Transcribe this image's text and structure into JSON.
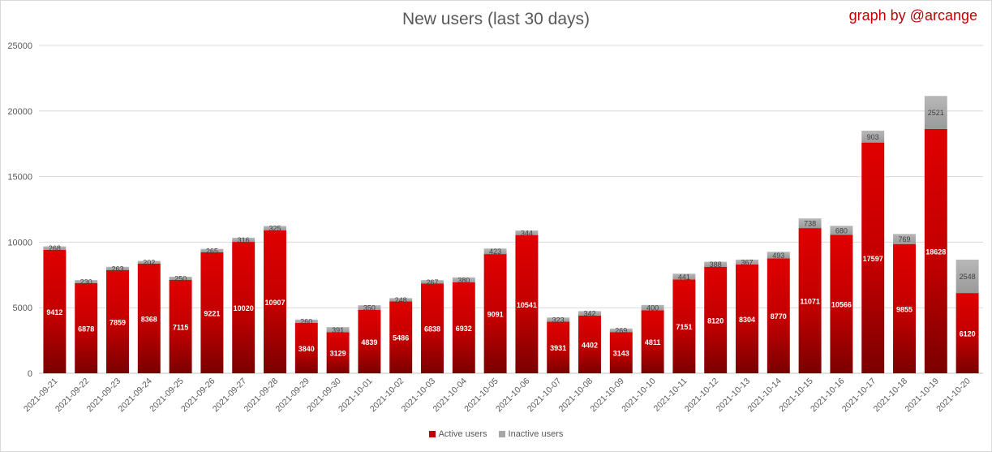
{
  "chart_data": {
    "type": "bar",
    "stacked": true,
    "title": "New users (last 30 days)",
    "credit": "graph by @arcange",
    "xlabel": "",
    "ylabel": "",
    "ylim": [
      0,
      25000
    ],
    "yticks": [
      0,
      5000,
      10000,
      15000,
      20000,
      25000
    ],
    "grid": true,
    "legend_position": "bottom",
    "categories": [
      "2021-09-21",
      "2021-09-22",
      "2021-09-23",
      "2021-09-24",
      "2021-09-25",
      "2021-09-26",
      "2021-09-27",
      "2021-09-28",
      "2021-09-29",
      "2021-09-30",
      "2021-10-01",
      "2021-10-02",
      "2021-10-03",
      "2021-10-04",
      "2021-10-05",
      "2021-10-06",
      "2021-10-07",
      "2021-10-08",
      "2021-10-09",
      "2021-10-10",
      "2021-10-11",
      "2021-10-12",
      "2021-10-13",
      "2021-10-14",
      "2021-10-15",
      "2021-10-16",
      "2021-10-17",
      "2021-10-18",
      "2021-10-19",
      "2021-10-20"
    ],
    "series": [
      {
        "name": "Active users",
        "color": "#c00000",
        "values": [
          9412,
          6878,
          7859,
          8368,
          7115,
          9221,
          10020,
          10907,
          3840,
          3129,
          4839,
          5486,
          6838,
          6932,
          9091,
          10541,
          3931,
          4402,
          3143,
          4811,
          7151,
          8120,
          8304,
          8770,
          11071,
          10566,
          17597,
          9855,
          18628,
          6120
        ]
      },
      {
        "name": "Inactive users",
        "color": "#a6a6a6",
        "values": [
          268,
          230,
          263,
          202,
          250,
          265,
          316,
          325,
          260,
          391,
          350,
          248,
          267,
          380,
          423,
          344,
          323,
          342,
          269,
          400,
          441,
          388,
          367,
          493,
          738,
          680,
          903,
          769,
          2521,
          2548
        ]
      }
    ]
  }
}
